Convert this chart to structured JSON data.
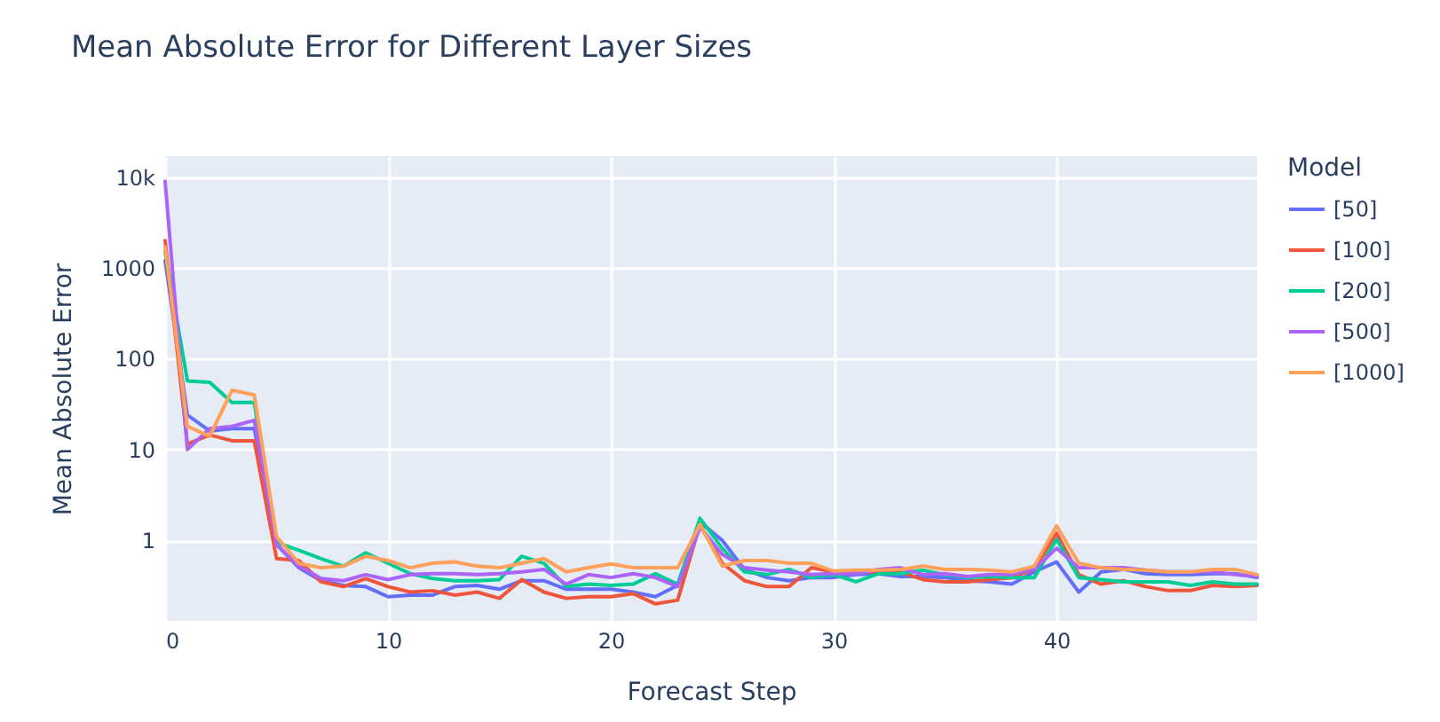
{
  "chart_data": {
    "type": "line",
    "title": "Mean Absolute Error for Different Layer Sizes",
    "xlabel": "Forecast Step",
    "ylabel": "Mean Absolute Error",
    "legend_title": "Model",
    "legend": "right",
    "grid": true,
    "log": "y",
    "x": [
      0,
      1,
      2,
      3,
      4,
      5,
      6,
      7,
      8,
      9,
      10,
      11,
      12,
      13,
      14,
      15,
      16,
      17,
      18,
      19,
      20,
      21,
      22,
      23,
      24,
      25,
      26,
      27,
      28,
      29,
      30,
      31,
      32,
      33,
      34,
      35,
      36,
      37,
      38,
      39,
      40,
      41,
      42,
      43,
      44,
      45,
      46,
      47,
      48,
      49
    ],
    "xlim": [
      0,
      49
    ],
    "xticks": [
      0,
      10,
      20,
      30,
      40
    ],
    "ylim": [
      0.13,
      17000
    ],
    "yticks": [
      1,
      10,
      100,
      1000,
      {
        "value": 10000,
        "label": "10k"
      }
    ],
    "series": [
      {
        "name": "[50]",
        "color": "#636efa",
        "values": [
          1200,
          24,
          16,
          17,
          17,
          0.9,
          0.5,
          0.36,
          0.32,
          0.31,
          0.24,
          0.25,
          0.25,
          0.31,
          0.32,
          0.29,
          0.36,
          0.36,
          0.29,
          0.29,
          0.29,
          0.27,
          0.24,
          0.32,
          1.6,
          1.0,
          0.48,
          0.39,
          0.36,
          0.39,
          0.39,
          0.42,
          0.43,
          0.4,
          0.4,
          0.39,
          0.36,
          0.35,
          0.33,
          0.45,
          0.58,
          0.27,
          0.45,
          0.48,
          0.43,
          0.42,
          0.42,
          0.43,
          0.43,
          0.39
        ]
      },
      {
        "name": "[100]",
        "color": "#ef553b",
        "values": [
          2000,
          11.5,
          14.5,
          12.5,
          12.5,
          0.63,
          0.6,
          0.35,
          0.31,
          0.38,
          0.31,
          0.27,
          0.28,
          0.25,
          0.27,
          0.23,
          0.37,
          0.27,
          0.23,
          0.24,
          0.24,
          0.26,
          0.2,
          0.22,
          1.5,
          0.56,
          0.36,
          0.31,
          0.31,
          0.5,
          0.45,
          0.45,
          0.45,
          0.45,
          0.37,
          0.35,
          0.35,
          0.37,
          0.39,
          0.48,
          1.2,
          0.42,
          0.33,
          0.36,
          0.31,
          0.28,
          0.28,
          0.32,
          0.31,
          0.32
        ]
      },
      {
        "name": "[200]",
        "color": "#00cc96",
        "values": [
          1500,
          57,
          55,
          33,
          33,
          0.95,
          0.78,
          0.63,
          0.52,
          0.73,
          0.56,
          0.43,
          0.38,
          0.36,
          0.36,
          0.37,
          0.67,
          0.56,
          0.31,
          0.33,
          0.32,
          0.33,
          0.43,
          0.33,
          1.75,
          0.82,
          0.45,
          0.42,
          0.48,
          0.39,
          0.42,
          0.35,
          0.43,
          0.43,
          0.47,
          0.42,
          0.39,
          0.4,
          0.39,
          0.39,
          1.03,
          0.39,
          0.37,
          0.35,
          0.35,
          0.35,
          0.32,
          0.35,
          0.33,
          0.33
        ]
      },
      {
        "name": "[500]",
        "color": "#ab63fa",
        "values": [
          9000,
          10,
          17,
          18,
          21,
          0.9,
          0.52,
          0.38,
          0.36,
          0.42,
          0.37,
          0.42,
          0.43,
          0.43,
          0.42,
          0.43,
          0.45,
          0.48,
          0.33,
          0.42,
          0.39,
          0.43,
          0.39,
          0.31,
          1.4,
          0.7,
          0.5,
          0.47,
          0.45,
          0.42,
          0.43,
          0.43,
          0.48,
          0.5,
          0.42,
          0.43,
          0.4,
          0.42,
          0.42,
          0.48,
          0.82,
          0.5,
          0.5,
          0.5,
          0.47,
          0.45,
          0.45,
          0.45,
          0.42,
          0.4
        ]
      },
      {
        "name": "[1000]",
        "color": "#ffa15a",
        "values": [
          1700,
          18,
          14,
          45,
          40,
          1.1,
          0.56,
          0.5,
          0.52,
          0.67,
          0.6,
          0.5,
          0.56,
          0.58,
          0.52,
          0.5,
          0.56,
          0.63,
          0.45,
          0.5,
          0.55,
          0.5,
          0.5,
          0.5,
          1.5,
          0.52,
          0.6,
          0.6,
          0.56,
          0.56,
          0.46,
          0.47,
          0.47,
          0.48,
          0.52,
          0.48,
          0.48,
          0.47,
          0.45,
          0.52,
          1.45,
          0.56,
          0.5,
          0.48,
          0.47,
          0.45,
          0.45,
          0.48,
          0.48,
          0.42
        ]
      }
    ]
  }
}
